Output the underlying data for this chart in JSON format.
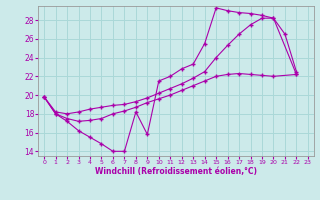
{
  "xlabel": "Windchill (Refroidissement éolien,°C)",
  "bg_color": "#cceaea",
  "line_color": "#aa00aa",
  "grid_color": "#aad8d8",
  "xlim": [
    -0.5,
    23.5
  ],
  "ylim": [
    13.5,
    29.5
  ],
  "xticks": [
    0,
    1,
    2,
    3,
    4,
    5,
    6,
    7,
    8,
    9,
    10,
    11,
    12,
    13,
    14,
    15,
    16,
    17,
    18,
    19,
    20,
    21,
    22,
    23
  ],
  "yticks": [
    14,
    16,
    18,
    20,
    22,
    24,
    26,
    28
  ],
  "series1_x": [
    0,
    1,
    2,
    3,
    4,
    5,
    6,
    7,
    8,
    9,
    10,
    11,
    12,
    13,
    14,
    15,
    16,
    17,
    18,
    19,
    20,
    21,
    22
  ],
  "series1_y": [
    19.8,
    18.0,
    17.2,
    16.2,
    15.5,
    14.8,
    14.0,
    14.0,
    18.2,
    15.8,
    21.5,
    22.0,
    22.8,
    23.3,
    25.5,
    29.3,
    29.0,
    28.8,
    28.7,
    28.5,
    28.2,
    26.5,
    22.5
  ],
  "series2_x": [
    0,
    1,
    2,
    3,
    4,
    5,
    6,
    7,
    8,
    9,
    10,
    11,
    12,
    13,
    14,
    15,
    16,
    17,
    18,
    19,
    20,
    22
  ],
  "series2_y": [
    19.8,
    18.2,
    18.0,
    18.2,
    18.5,
    18.7,
    18.9,
    19.0,
    19.3,
    19.7,
    20.2,
    20.7,
    21.2,
    21.8,
    22.5,
    24.0,
    25.3,
    26.5,
    27.5,
    28.2,
    28.2,
    22.2
  ],
  "series3_x": [
    0,
    1,
    2,
    3,
    4,
    5,
    6,
    7,
    8,
    9,
    10,
    11,
    12,
    13,
    14,
    15,
    16,
    17,
    18,
    19,
    20,
    22
  ],
  "series3_y": [
    19.8,
    18.0,
    17.5,
    17.2,
    17.3,
    17.5,
    18.0,
    18.3,
    18.7,
    19.2,
    19.6,
    20.0,
    20.5,
    21.0,
    21.5,
    22.0,
    22.2,
    22.3,
    22.2,
    22.1,
    22.0,
    22.2
  ]
}
